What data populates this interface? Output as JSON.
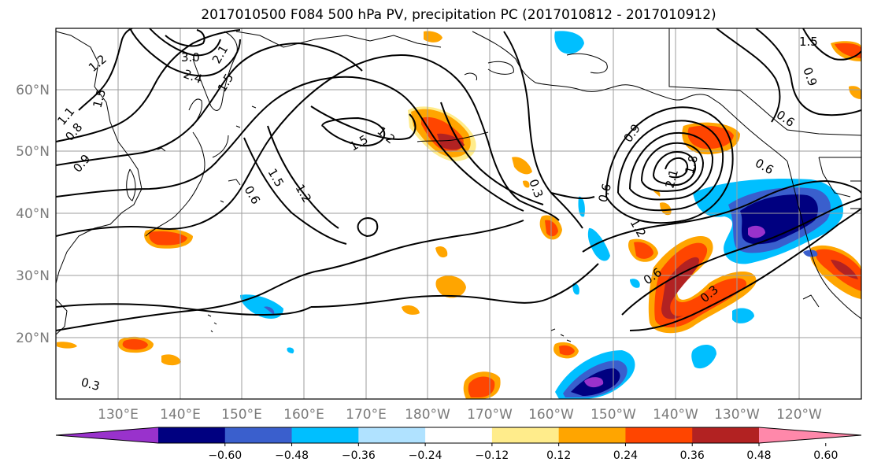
{
  "title": "2017010500 F084 500 hPa PV, precipitation PC (2017010812 - 2017010912)",
  "lat_labels": [
    "60°N",
    "50°N",
    "40°N",
    "30°N",
    "20°N"
  ],
  "lon_labels": [
    "130°E",
    "140°E",
    "150°E",
    "160°E",
    "170°E",
    "180°W",
    "170°W",
    "160°W",
    "150°W",
    "140°W",
    "130°W",
    "120°W"
  ],
  "colorbar": {
    "colors": [
      "#9932cc",
      "#000080",
      "#3a5fcd",
      "#00bfff",
      "#b0e2ff",
      "#ffffff",
      "#ffec8b",
      "#ffa500",
      "#ff4500",
      "#b22222",
      "#ff88aa"
    ],
    "tick_labels": [
      "−0.60",
      "−0.48",
      "−0.36",
      "−0.24",
      "−0.12",
      "0.12",
      "0.24",
      "0.36",
      "0.48",
      "0.60"
    ]
  },
  "contour_labels": [
    "1.2",
    "3.0",
    "2.4",
    "2.1",
    "1.5",
    "1.5",
    "1.1",
    "0.9",
    "0.8",
    "0.6",
    "1.2",
    "1.5",
    "1.5",
    "1.2",
    "0.3",
    "0.9",
    "0.6",
    "2.1",
    "1.8",
    "1.2",
    "0.6",
    "0.3",
    "0.6",
    "0.9",
    "1.5",
    "0.6",
    "0.3"
  ]
}
